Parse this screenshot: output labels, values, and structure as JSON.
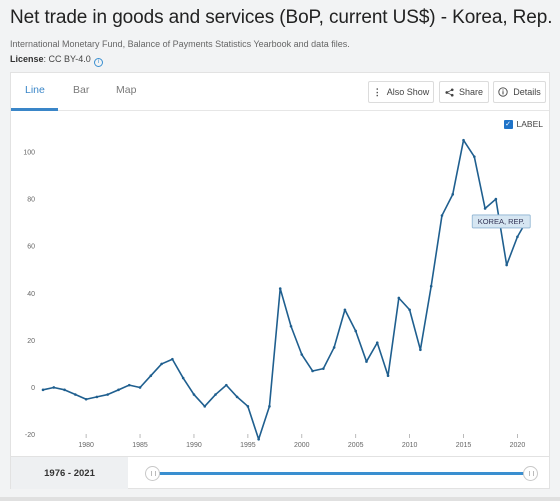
{
  "header": {
    "title": "Net trade in goods and services (BoP, current US$) - Korea, Rep.",
    "source": "International Monetary Fund, Balance of Payments Statistics Yearbook and data files.",
    "license_label": "License",
    "license_value": ": CC BY-4.0"
  },
  "tabs": [
    {
      "label": "Line"
    },
    {
      "label": "Bar"
    },
    {
      "label": "Map"
    }
  ],
  "toolbar": {
    "also_show": "Also Show",
    "share": "Share",
    "details": "Details"
  },
  "label_toggle": "LABEL",
  "range": "1976 - 2021",
  "colors": {
    "accent": "#3a86c8",
    "line": "#1f5f8f"
  },
  "chart_data": {
    "type": "line",
    "x": [
      1976,
      1977,
      1978,
      1979,
      1980,
      1981,
      1982,
      1983,
      1984,
      1985,
      1986,
      1987,
      1988,
      1989,
      1990,
      1991,
      1992,
      1993,
      1994,
      1995,
      1996,
      1997,
      1998,
      1999,
      2000,
      2001,
      2002,
      2003,
      2004,
      2005,
      2006,
      2007,
      2008,
      2009,
      2010,
      2011,
      2012,
      2013,
      2014,
      2015,
      2016,
      2017,
      2018,
      2019,
      2020,
      2021
    ],
    "series": [
      {
        "name": "KOREA, REP.",
        "values": [
          -1,
          0,
          -1,
          -3,
          -5,
          -4,
          -3,
          -1,
          1,
          0,
          5,
          10,
          12,
          4,
          -3,
          -8,
          -3,
          1,
          -4,
          -8,
          -22,
          -8,
          42,
          26,
          14,
          7,
          8,
          17,
          33,
          24,
          11,
          19,
          5,
          38,
          33,
          16,
          43,
          73,
          82,
          105,
          98,
          76,
          80,
          52,
          64,
          72
        ]
      }
    ],
    "xticks": [
      1980,
      1985,
      1990,
      1995,
      2000,
      2005,
      2010,
      2015,
      2020
    ],
    "yticks": [
      -20,
      0,
      20,
      40,
      60,
      80,
      100
    ],
    "xlim": [
      1976,
      2022
    ],
    "ylim": [
      -24,
      114
    ],
    "grid": false,
    "legend": "in-chart label near last point"
  }
}
